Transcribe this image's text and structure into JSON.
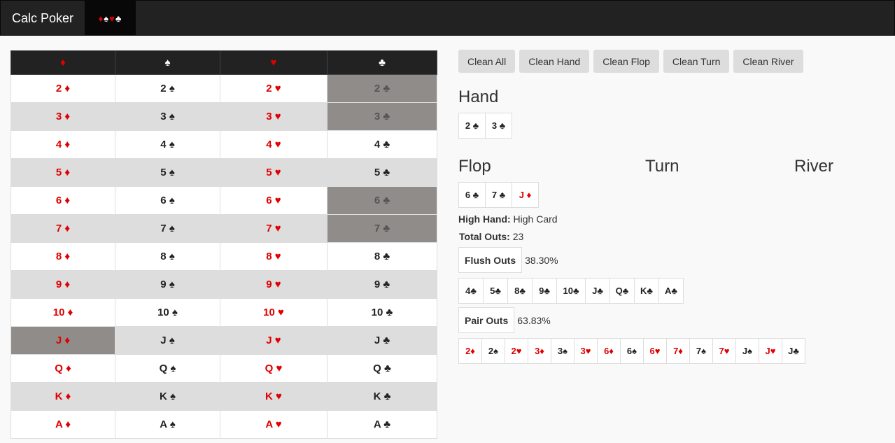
{
  "navbar": {
    "brand": "Calc Poker",
    "suit_glyphs": [
      {
        "glyph": "♦",
        "color": "red"
      },
      {
        "glyph": "♠",
        "color": "wht"
      },
      {
        "glyph": "♥",
        "color": "red"
      },
      {
        "glyph": "♣",
        "color": "wht"
      }
    ]
  },
  "deck": {
    "headers": [
      {
        "glyph": "♦",
        "color": "red"
      },
      {
        "glyph": "♠",
        "color": "wht"
      },
      {
        "glyph": "♥",
        "color": "red"
      },
      {
        "glyph": "♣",
        "color": "wht"
      }
    ],
    "ranks": [
      "2",
      "3",
      "4",
      "5",
      "6",
      "7",
      "8",
      "9",
      "10",
      "J",
      "Q",
      "K",
      "A"
    ],
    "selected": [
      "2♣",
      "3♣",
      "6♣",
      "7♣",
      "J♦"
    ]
  },
  "buttons": [
    "Clean All",
    "Clean Hand",
    "Clean Flop",
    "Clean Turn",
    "Clean River"
  ],
  "sections": {
    "hand": "Hand",
    "flop": "Flop",
    "turn": "Turn",
    "river": "River"
  },
  "hand_cards": [
    "2 ♣",
    "3 ♣"
  ],
  "flop_cards": [
    "6 ♣",
    "7 ♣",
    "J ♦"
  ],
  "stats": {
    "high_hand_label": "High Hand:",
    "high_hand_value": "High Card",
    "total_outs_label": "Total Outs:",
    "total_outs_value": "23",
    "flush_label": "Flush Outs",
    "flush_pct": "38.30%",
    "pair_label": "Pair Outs",
    "pair_pct": "63.83%"
  },
  "flush_outs": [
    "4♣",
    "5♣",
    "8♣",
    "9♣",
    "10♣",
    "J♣",
    "Q♣",
    "K♣",
    "A♣"
  ],
  "pair_outs": [
    "2♦",
    "2♠",
    "2♥",
    "3♦",
    "3♠",
    "3♥",
    "6♦",
    "6♠",
    "6♥",
    "7♦",
    "7♠",
    "7♥",
    "J♠",
    "J♥",
    "J♣"
  ],
  "colors": {
    "navbar": "#222222",
    "red_suit": "#e00000",
    "selected_cell": "#8f8c8a",
    "stripe": "#dddddd"
  }
}
